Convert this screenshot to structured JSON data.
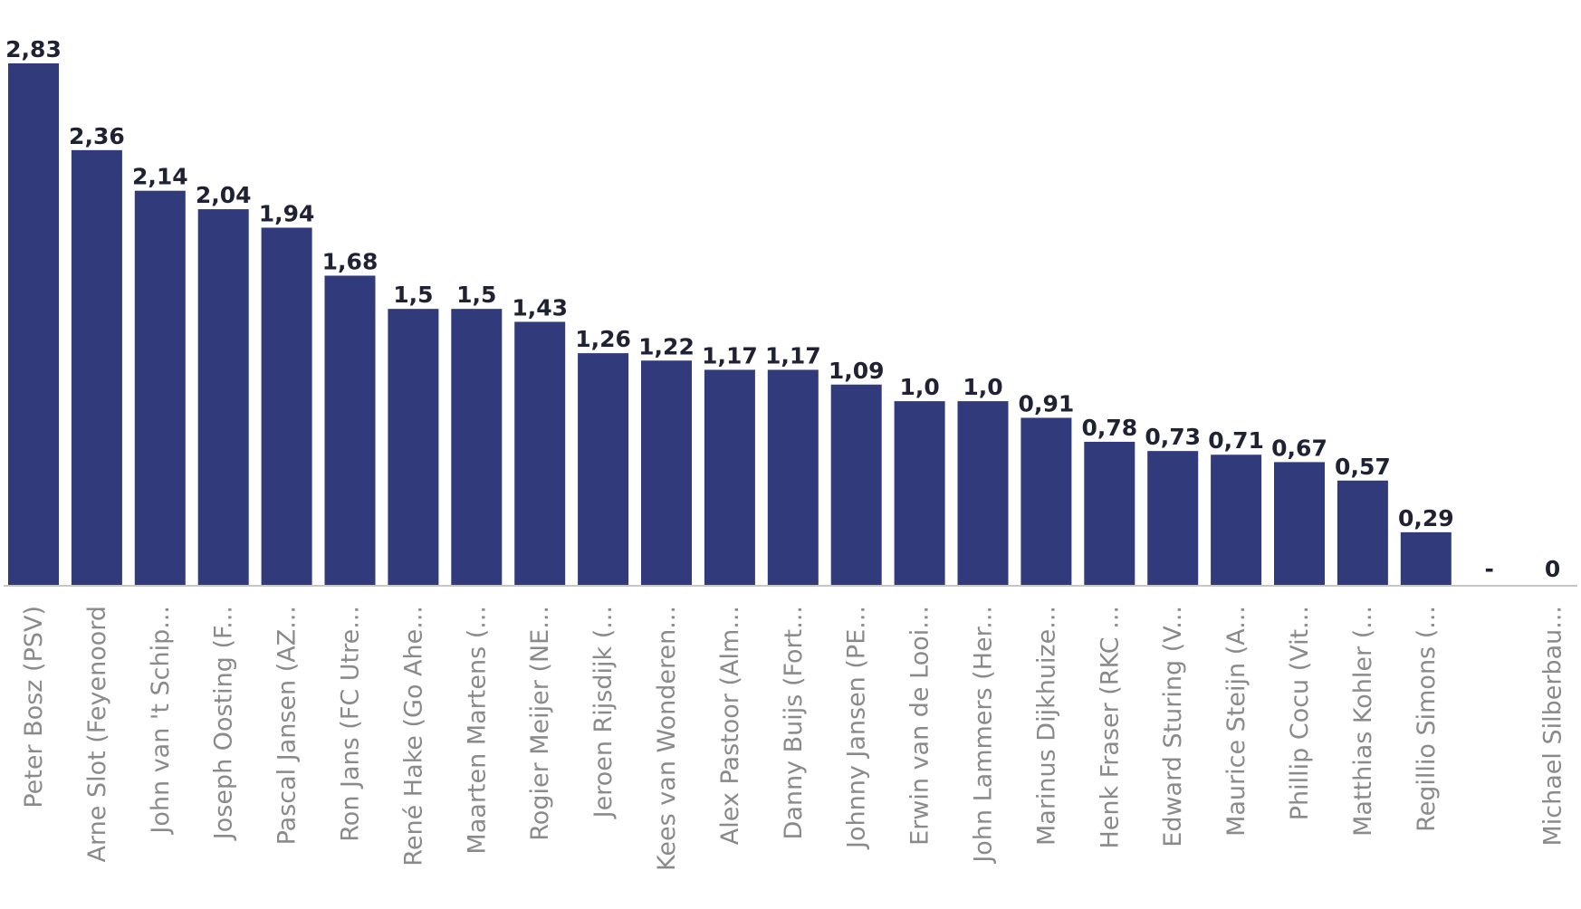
{
  "chart_data": {
    "type": "bar",
    "title": "",
    "xlabel": "",
    "ylabel": "",
    "ylim": [
      0,
      2.83
    ],
    "grid": false,
    "legend": "none",
    "bar_color": "#313b7b",
    "categories": [
      "Peter Bosz (PSV)",
      "Arne Slot (Feyenoord",
      "John van 't Schip...",
      "Joseph Oosting (F...",
      "Pascal Jansen (AZ...",
      "Ron Jans (FC Utre...",
      "René Hake (Go Ahe...",
      "Maarten Martens (...",
      "Rogier Meijer (NE...",
      "Jeroen Rijsdijk (...",
      "Kees van Wonderen...",
      "Alex Pastoor (Alm...",
      "Danny Buijs (Fort...",
      "Johnny Jansen (PE...",
      "Erwin van de Looi...",
      "John Lammers (Her...",
      "Marinus Dijkhuize...",
      "Henk Fraser (RKC ...",
      "Edward Sturing (V...",
      "Maurice Steijn (A...",
      "Phillip Cocu (Vit...",
      "Matthias Kohler (...",
      "Regillio Simons (...",
      "",
      "Michael Silberbau..."
    ],
    "values": [
      2.83,
      2.36,
      2.14,
      2.04,
      1.94,
      1.68,
      1.5,
      1.5,
      1.43,
      1.26,
      1.22,
      1.17,
      1.17,
      1.09,
      1.0,
      1.0,
      0.91,
      0.78,
      0.73,
      0.71,
      0.67,
      0.57,
      0.29,
      null,
      0
    ],
    "data_labels": [
      "2,83",
      "2,36",
      "2,14",
      "2,04",
      "1,94",
      "1,68",
      "1,5",
      "1,5",
      "1,43",
      "1,26",
      "1,22",
      "1,17",
      "1,17",
      "1,09",
      "1,0",
      "1,0",
      "0,91",
      "0,78",
      "0,73",
      "0,71",
      "0,67",
      "0,57",
      "0,29",
      "-",
      "0"
    ]
  }
}
